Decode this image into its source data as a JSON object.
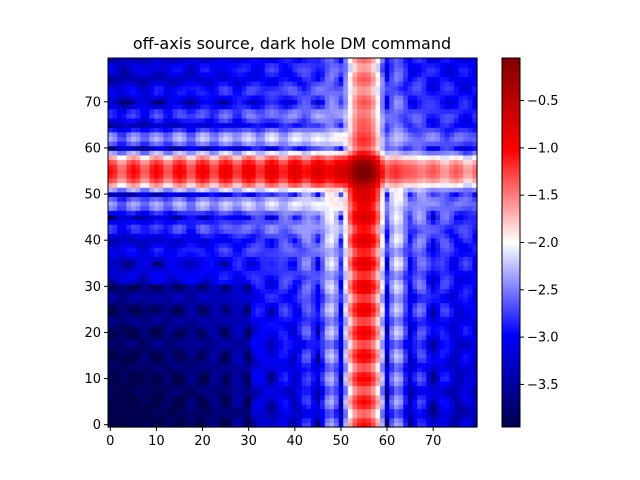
{
  "chart_data": {
    "type": "heatmap",
    "title": "off-axis source, dark hole DM command",
    "xlabel": "",
    "ylabel": "",
    "grid_size": [
      80,
      80
    ],
    "xlim": [
      -0.5,
      79.5
    ],
    "ylim": [
      -0.5,
      79.5
    ],
    "x_ticks": [
      0,
      10,
      20,
      30,
      40,
      50,
      60,
      70
    ],
    "y_ticks": [
      0,
      10,
      20,
      30,
      40,
      50,
      60,
      70
    ],
    "colormap": "seismic",
    "color_range": [
      -3.95,
      -0.05
    ],
    "colorbar_ticks": [
      -3.5,
      -3.0,
      -2.5,
      -2.0,
      -1.5,
      -1.0,
      -0.5
    ],
    "colorbar_tick_labels": [
      "−3.5",
      "−3.0",
      "−2.5",
      "−2.0",
      "−1.5",
      "−1.0",
      "−0.5"
    ],
    "features": {
      "peak_center": [
        55,
        55
      ],
      "peak_value": -0.05,
      "background_value": -3.95,
      "horizontal_streak_row": 55,
      "vertical_streak_column": 55,
      "fringe_period": 5
    },
    "colors": {
      "low": "#00004c",
      "mid": "#ffffff",
      "high": "#800000"
    }
  }
}
